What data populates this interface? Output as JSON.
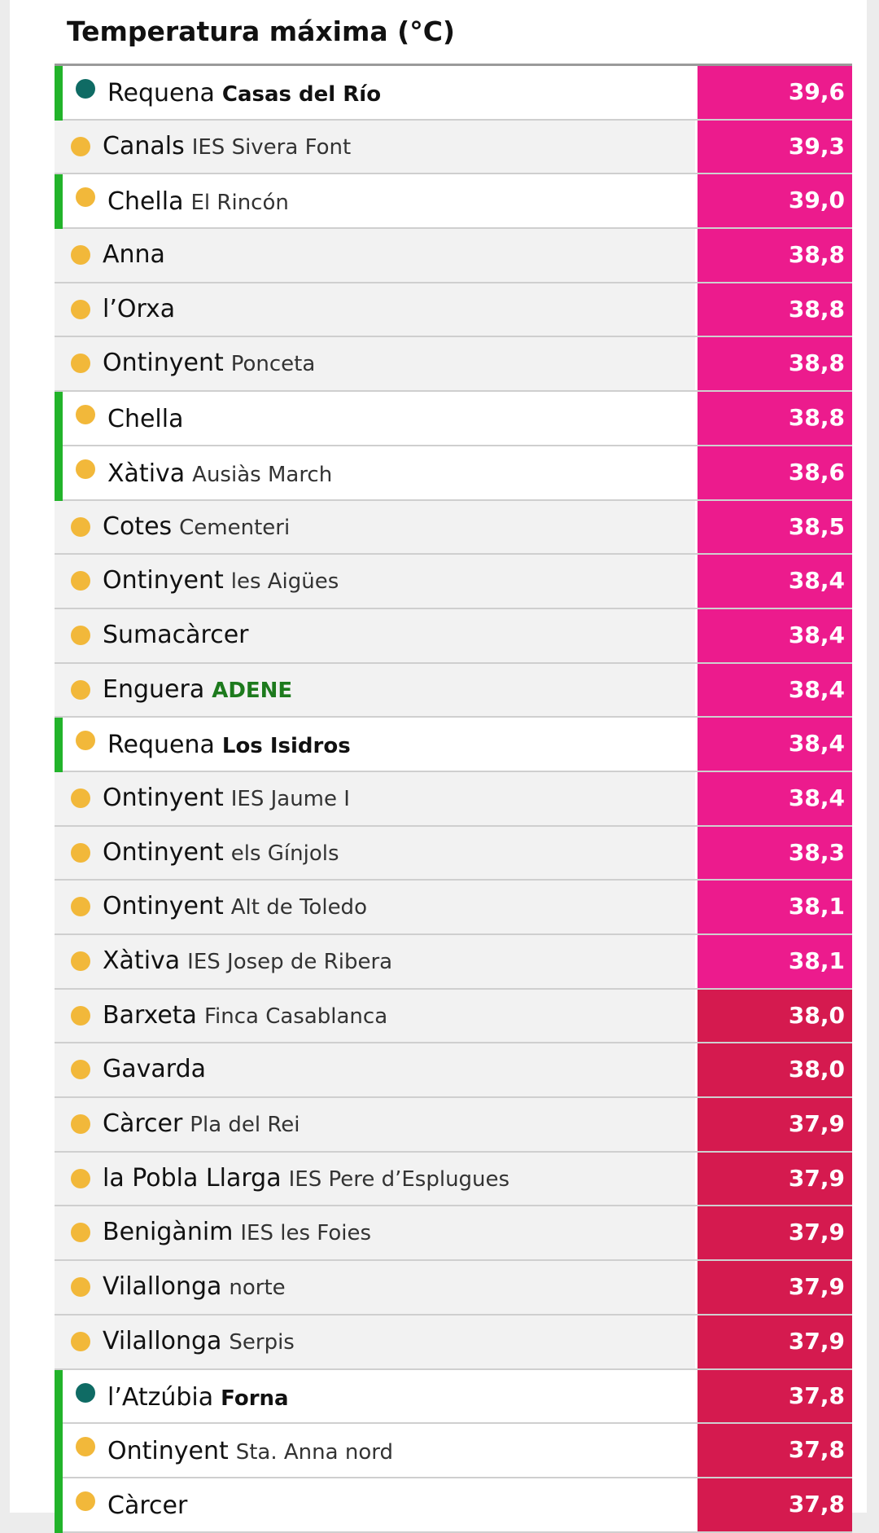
{
  "title": "Temperatura máxima (°C)",
  "colors": {
    "highlight_bar": "#22b32a",
    "dot_official": "#0f6b64",
    "dot_amateur": "#f2b83a",
    "value_above_38": "#ec1b8d",
    "value_38_and_below": "#d51a4f",
    "network_green_text": "#1d7a1d"
  },
  "rows": [
    {
      "place": "Requena",
      "sub": "Casas del Río",
      "sub_style": "bold",
      "value": "39,6",
      "highlight": true,
      "dot": "official",
      "heat": "hot"
    },
    {
      "place": "Canals",
      "sub": "IES Sivera Font",
      "sub_style": "normal",
      "value": "39,3",
      "highlight": false,
      "dot": "amateur",
      "heat": "hot"
    },
    {
      "place": "Chella",
      "sub": "El Rincón",
      "sub_style": "normal",
      "value": "39,0",
      "highlight": true,
      "dot": "amateur",
      "heat": "hot"
    },
    {
      "place": "Anna",
      "sub": "",
      "sub_style": "normal",
      "value": "38,8",
      "highlight": false,
      "dot": "amateur",
      "heat": "hot"
    },
    {
      "place": "l’Orxa",
      "sub": "",
      "sub_style": "normal",
      "value": "38,8",
      "highlight": false,
      "dot": "amateur",
      "heat": "hot"
    },
    {
      "place": "Ontinyent",
      "sub": "Ponceta",
      "sub_style": "normal",
      "value": "38,8",
      "highlight": false,
      "dot": "amateur",
      "heat": "hot"
    },
    {
      "place": "Chella",
      "sub": "",
      "sub_style": "normal",
      "value": "38,8",
      "highlight": true,
      "dot": "amateur",
      "heat": "hot"
    },
    {
      "place": "Xàtiva",
      "sub": "Ausiàs March",
      "sub_style": "normal",
      "value": "38,6",
      "highlight": true,
      "dot": "amateur",
      "heat": "hot"
    },
    {
      "place": "Cotes",
      "sub": "Cementeri",
      "sub_style": "normal",
      "value": "38,5",
      "highlight": false,
      "dot": "amateur",
      "heat": "hot"
    },
    {
      "place": "Ontinyent",
      "sub": "les Aigües",
      "sub_style": "normal",
      "value": "38,4",
      "highlight": false,
      "dot": "amateur",
      "heat": "hot"
    },
    {
      "place": "Sumacàrcer",
      "sub": "",
      "sub_style": "normal",
      "value": "38,4",
      "highlight": false,
      "dot": "amateur",
      "heat": "hot"
    },
    {
      "place": "Enguera",
      "sub": "ADENE",
      "sub_style": "green",
      "value": "38,4",
      "highlight": false,
      "dot": "amateur",
      "heat": "hot"
    },
    {
      "place": "Requena",
      "sub": "Los Isidros",
      "sub_style": "bold",
      "value": "38,4",
      "highlight": true,
      "dot": "amateur",
      "heat": "hot"
    },
    {
      "place": "Ontinyent",
      "sub": "IES Jaume I",
      "sub_style": "normal",
      "value": "38,4",
      "highlight": false,
      "dot": "amateur",
      "heat": "hot"
    },
    {
      "place": "Ontinyent",
      "sub": "els Gínjols",
      "sub_style": "normal",
      "value": "38,3",
      "highlight": false,
      "dot": "amateur",
      "heat": "hot"
    },
    {
      "place": "Ontinyent",
      "sub": "Alt de Toledo",
      "sub_style": "normal",
      "value": "38,1",
      "highlight": false,
      "dot": "amateur",
      "heat": "hot"
    },
    {
      "place": "Xàtiva",
      "sub": "IES Josep de Ribera",
      "sub_style": "normal",
      "value": "38,1",
      "highlight": false,
      "dot": "amateur",
      "heat": "hot"
    },
    {
      "place": "Barxeta",
      "sub": "Finca Casablanca",
      "sub_style": "normal",
      "value": "38,0",
      "highlight": false,
      "dot": "amateur",
      "heat": "warm"
    },
    {
      "place": "Gavarda",
      "sub": "",
      "sub_style": "normal",
      "value": "38,0",
      "highlight": false,
      "dot": "amateur",
      "heat": "warm"
    },
    {
      "place": "Càrcer",
      "sub": "Pla del Rei",
      "sub_style": "normal",
      "value": "37,9",
      "highlight": false,
      "dot": "amateur",
      "heat": "warm"
    },
    {
      "place": "la Pobla Llarga",
      "sub": "IES Pere d’Esplugues",
      "sub_style": "normal",
      "value": "37,9",
      "highlight": false,
      "dot": "amateur",
      "heat": "warm"
    },
    {
      "place": "Benigànim",
      "sub": "IES les Foies",
      "sub_style": "normal",
      "value": "37,9",
      "highlight": false,
      "dot": "amateur",
      "heat": "warm"
    },
    {
      "place": "Vilallonga",
      "sub": "norte",
      "sub_style": "normal",
      "value": "37,9",
      "highlight": false,
      "dot": "amateur",
      "heat": "warm"
    },
    {
      "place": "Vilallonga",
      "sub": "Serpis",
      "sub_style": "normal",
      "value": "37,9",
      "highlight": false,
      "dot": "amateur",
      "heat": "warm"
    },
    {
      "place": "l’Atzúbia",
      "sub": "Forna",
      "sub_style": "bold",
      "value": "37,8",
      "highlight": true,
      "dot": "official",
      "heat": "warm"
    },
    {
      "place": "Ontinyent",
      "sub": "Sta. Anna nord",
      "sub_style": "normal",
      "value": "37,8",
      "highlight": true,
      "dot": "amateur",
      "heat": "warm"
    },
    {
      "place": "Càrcer",
      "sub": "",
      "sub_style": "normal",
      "value": "37,8",
      "highlight": true,
      "dot": "amateur",
      "heat": "warm"
    }
  ]
}
